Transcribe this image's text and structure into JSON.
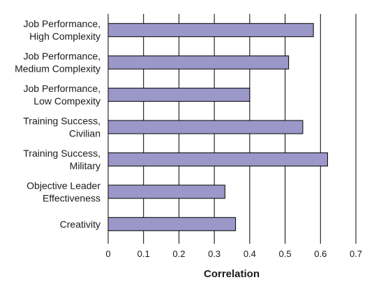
{
  "chart_data": {
    "type": "bar",
    "orientation": "horizontal",
    "title": "",
    "xlabel": "Correlation",
    "ylabel": "",
    "xlim": [
      0,
      0.7
    ],
    "xticks": [
      "0",
      "0.1",
      "0.2",
      "0.3",
      "0.4",
      "0.5",
      "0.6",
      "0.7"
    ],
    "grid": "vertical gridlines",
    "categories": [
      [
        "Job Performance,",
        "High Complexity"
      ],
      [
        "Job Performance,",
        "Medium Complexity"
      ],
      [
        "Job Performance,",
        "Low Compexity"
      ],
      [
        "Training Success,",
        "Civilian"
      ],
      [
        "Training Success,",
        "Military"
      ],
      [
        "Objective Leader",
        "Effectiveness"
      ],
      [
        "Creativity"
      ]
    ],
    "values": [
      0.58,
      0.51,
      0.4,
      0.55,
      0.62,
      0.33,
      0.36
    ],
    "bar_color": "#9b97c8",
    "bar_edge_color": "#000000"
  }
}
